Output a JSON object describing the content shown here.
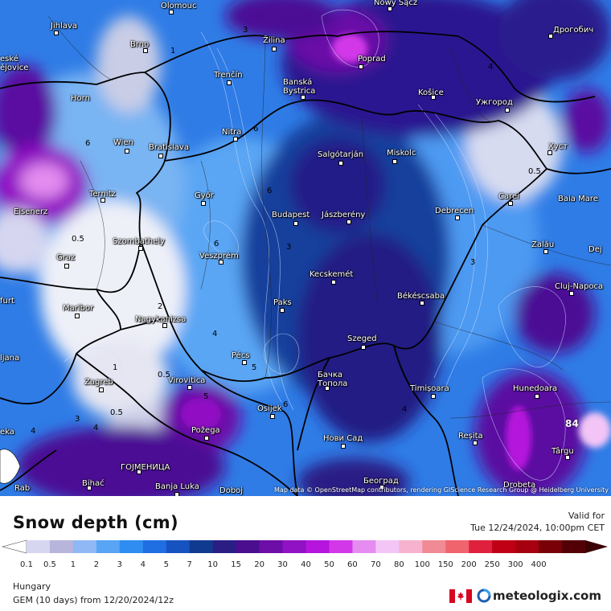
{
  "map": {
    "attribution": "Map data © OpenStreetMap contributors, rendering GIScience Research Group @ Heidelberg University",
    "cities": [
      {
        "name": "Olomouc"
      },
      {
        "name": "Nowy Sącz"
      },
      {
        "name": "Jihlava"
      },
      {
        "name": "Brno"
      },
      {
        "name": "Žilina"
      },
      {
        "name": "Poprad"
      },
      {
        "name": "Дрогобич"
      },
      {
        "name": "eské\nějovice"
      },
      {
        "name": "Trenčín"
      },
      {
        "name": "Banská\nBystrica"
      },
      {
        "name": "Horn"
      },
      {
        "name": "Košice"
      },
      {
        "name": "Ужгород"
      },
      {
        "name": "Nitra"
      },
      {
        "name": "Wien"
      },
      {
        "name": "Bratislava"
      },
      {
        "name": "Salgótarján"
      },
      {
        "name": "Miskolc"
      },
      {
        "name": "Хуст"
      },
      {
        "name": "Ternitz"
      },
      {
        "name": "Győr"
      },
      {
        "name": "Carei"
      },
      {
        "name": "Baia Mare"
      },
      {
        "name": "Eisenerz"
      },
      {
        "name": "Budapest"
      },
      {
        "name": "Jászberény"
      },
      {
        "name": "Debrecen"
      },
      {
        "name": "Szombathely"
      },
      {
        "name": "Graz"
      },
      {
        "name": "Veszprém"
      },
      {
        "name": "Zalău"
      },
      {
        "name": "Dej"
      },
      {
        "name": "Kecskemét"
      },
      {
        "name": "Cluj-Napoca"
      },
      {
        "name": "furt"
      },
      {
        "name": "Maribor"
      },
      {
        "name": "Paks"
      },
      {
        "name": "Békéscsaba"
      },
      {
        "name": "Nagykanizsa"
      },
      {
        "name": "Szeged"
      },
      {
        "name": "Pécs"
      },
      {
        "name": "ljana"
      },
      {
        "name": "Бачка\nТопола"
      },
      {
        "name": "Zagreb"
      },
      {
        "name": "Virovitica"
      },
      {
        "name": "Timișoara"
      },
      {
        "name": "Hunedoara"
      },
      {
        "name": "Osijek"
      },
      {
        "name": "Požega"
      },
      {
        "name": "eka"
      },
      {
        "name": "Reșița"
      },
      {
        "name": "Нови Сад"
      },
      {
        "name": "ГОЈМЕНИЦА"
      },
      {
        "name": "Târgu"
      },
      {
        "name": "Bihać"
      },
      {
        "name": "Banja Luka"
      },
      {
        "name": "Doboj"
      },
      {
        "name": "Београд"
      },
      {
        "name": "Drobeta"
      },
      {
        "name": "Rab"
      }
    ],
    "isolines": [
      "1",
      "3",
      "4",
      "0.5",
      "0.5",
      "2",
      "1",
      "0.5",
      "3",
      "5",
      "4",
      "3",
      "4",
      "4",
      "6",
      "6",
      "6",
      "6",
      "3",
      "4",
      "5",
      "6",
      "0.5",
      "84"
    ]
  },
  "legend": {
    "title": "Snow depth (cm)",
    "valid_label": "Valid for",
    "valid_date": "Tue 12/24/2024, 10:00pm CET",
    "levels": [
      "0.1",
      "0.5",
      "1",
      "2",
      "3",
      "4",
      "5",
      "7",
      "10",
      "15",
      "20",
      "30",
      "40",
      "50",
      "60",
      "70",
      "80",
      "100",
      "150",
      "200",
      "250",
      "300",
      "400"
    ],
    "colors": [
      "#d6d6f0",
      "#b7b5db",
      "#8fb8f5",
      "#58a4f5",
      "#2f8cf0",
      "#1f6fe2",
      "#1753c0",
      "#103a8f",
      "#2a1e85",
      "#4a0e8f",
      "#6d0ea8",
      "#9111c4",
      "#b515dc",
      "#d237e8",
      "#e48cf0",
      "#f3c5f6",
      "#f7b2cf",
      "#f08b96",
      "#f0646e",
      "#e0213e",
      "#c00015",
      "#a60010",
      "#7a0008",
      "#520006"
    ],
    "region": "Hungary",
    "model": "GEM (10 days)  from  12/20/2024/12z",
    "brand": "meteologix.com"
  }
}
